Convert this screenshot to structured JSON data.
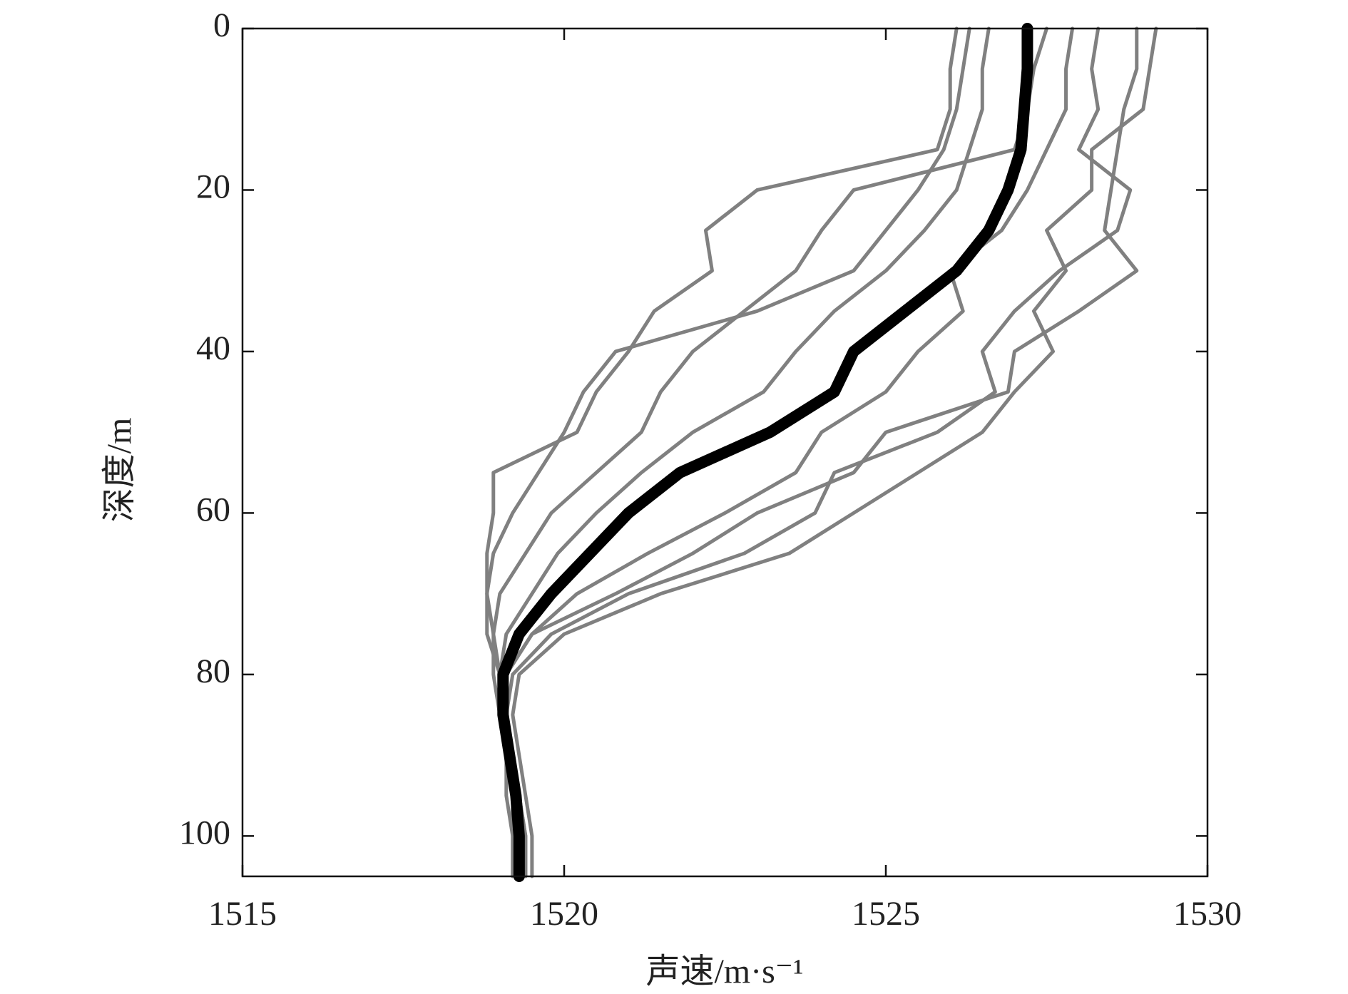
{
  "chart_data": {
    "type": "line",
    "orientation": "vertical-profile",
    "x_label": "声速/m·s⁻¹",
    "y_label": "深度/m",
    "xlim": [
      1515,
      1530
    ],
    "xticks": [
      1515,
      1520,
      1525,
      1530
    ],
    "ylim": [
      0,
      105
    ],
    "yticks": [
      0,
      20,
      40,
      60,
      80,
      100
    ],
    "y_inverted": true,
    "y": [
      0,
      5,
      10,
      15,
      20,
      25,
      30,
      35,
      40,
      45,
      50,
      55,
      60,
      65,
      70,
      75,
      80,
      85,
      90,
      95,
      100,
      105
    ],
    "series": [
      {
        "color": "#808080",
        "values": [
          1526.1,
          1526.0,
          1526.0,
          1525.8,
          1523.0,
          1522.2,
          1522.3,
          1521.4,
          1521.0,
          1520.5,
          1520.2,
          1518.9,
          1518.9,
          1518.8,
          1518.8,
          1518.8,
          1519.0,
          1519.0,
          1519.1,
          1519.2,
          1519.2,
          1519.2
        ]
      },
      {
        "color": "#808080",
        "values": [
          1528.9,
          1528.9,
          1528.7,
          1528.6,
          1528.5,
          1528.4,
          1528.9,
          1528.0,
          1527.0,
          1526.9,
          1525.0,
          1524.5,
          1523.0,
          1522.0,
          1520.8,
          1519.5,
          1519.1,
          1519.1,
          1519.2,
          1519.3,
          1519.4,
          1519.4
        ]
      },
      {
        "color": "#808080",
        "values": [
          1527.5,
          1527.3,
          1527.2,
          1527.0,
          1524.5,
          1524.0,
          1523.6,
          1522.8,
          1522.0,
          1521.5,
          1521.2,
          1520.5,
          1519.8,
          1519.4,
          1519.0,
          1518.9,
          1518.9,
          1519.0,
          1519.1,
          1519.2,
          1519.3,
          1519.3
        ]
      },
      {
        "color": "#808080",
        "values": [
          1529.2,
          1529.1,
          1529.0,
          1528.2,
          1528.2,
          1527.5,
          1527.8,
          1527.3,
          1527.6,
          1527.0,
          1526.5,
          1525.5,
          1524.5,
          1523.5,
          1521.5,
          1520.0,
          1519.3,
          1519.2,
          1519.3,
          1519.4,
          1519.5,
          1519.5
        ]
      },
      {
        "color": "#808080",
        "values": [
          1526.3,
          1526.2,
          1526.1,
          1525.9,
          1525.5,
          1525.0,
          1524.5,
          1523.0,
          1520.8,
          1520.3,
          1520.0,
          1519.6,
          1519.2,
          1518.9,
          1518.8,
          1518.9,
          1519.0,
          1519.0,
          1519.1,
          1519.1,
          1519.2,
          1519.2
        ]
      },
      {
        "color": "#808080",
        "values": [
          1527.9,
          1527.8,
          1527.8,
          1527.5,
          1527.2,
          1526.8,
          1526.0,
          1526.2,
          1525.5,
          1525.0,
          1524.0,
          1523.6,
          1522.5,
          1521.3,
          1520.2,
          1519.5,
          1519.1,
          1519.1,
          1519.2,
          1519.3,
          1519.3,
          1519.3
        ]
      },
      {
        "color": "#808080",
        "values": [
          1526.6,
          1526.5,
          1526.5,
          1526.3,
          1526.1,
          1525.6,
          1525.0,
          1524.2,
          1523.6,
          1523.1,
          1522.0,
          1521.2,
          1520.5,
          1519.9,
          1519.5,
          1519.1,
          1519.0,
          1519.0,
          1519.1,
          1519.2,
          1519.3,
          1519.3
        ]
      },
      {
        "color": "#808080",
        "values": [
          1528.3,
          1528.2,
          1528.3,
          1528.0,
          1528.8,
          1528.6,
          1527.7,
          1527.0,
          1526.5,
          1526.7,
          1525.8,
          1524.2,
          1523.9,
          1522.8,
          1521.0,
          1519.8,
          1519.2,
          1519.1,
          1519.2,
          1519.3,
          1519.4,
          1519.4
        ]
      },
      {
        "color": "#000000",
        "values": [
          1527.2,
          1527.2,
          1527.15,
          1527.1,
          1526.9,
          1526.6,
          1526.1,
          1525.3,
          1524.5,
          1524.2,
          1523.2,
          1521.8,
          1521.0,
          1520.4,
          1519.8,
          1519.3,
          1519.05,
          1519.05,
          1519.15,
          1519.25,
          1519.3,
          1519.3
        ]
      }
    ]
  }
}
